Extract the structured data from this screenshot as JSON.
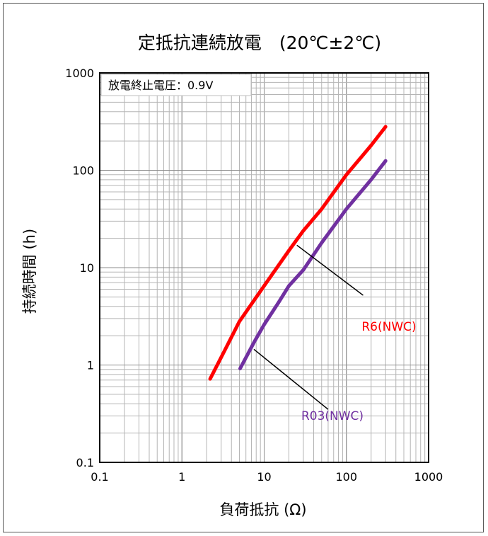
{
  "chart_data": {
    "type": "line",
    "title": "定抵抗連続放電　(20℃±2℃)",
    "xlabel": "負荷抵抗 (Ω)",
    "ylabel": "持続時間 (h)",
    "xscale": "log",
    "yscale": "log",
    "xlim": [
      0.1,
      1000
    ],
    "ylim": [
      0.1,
      1000
    ],
    "grid": true,
    "x_ticks": [
      "0.1",
      "1",
      "10",
      "100",
      "1000"
    ],
    "y_ticks": [
      "0.1",
      "1",
      "10",
      "100",
      "1000"
    ],
    "annotation": "放電終止電圧：0.9V",
    "series": [
      {
        "name": "R6(NWC)",
        "color": "#ff0000",
        "points": [
          [
            2.2,
            0.72
          ],
          [
            3.3,
            1.4
          ],
          [
            5,
            2.8
          ],
          [
            10,
            6.5
          ],
          [
            20,
            15
          ],
          [
            30,
            24
          ],
          [
            50,
            40
          ],
          [
            100,
            90
          ],
          [
            200,
            180
          ],
          [
            300,
            280
          ]
        ]
      },
      {
        "name": "R03(NWC)",
        "color": "#7030a0",
        "points": [
          [
            5.1,
            0.92
          ],
          [
            7.5,
            1.7
          ],
          [
            10,
            2.6
          ],
          [
            15,
            4.4
          ],
          [
            20,
            6.5
          ],
          [
            30,
            9.5
          ],
          [
            50,
            18
          ],
          [
            100,
            40
          ],
          [
            200,
            80
          ],
          [
            300,
            125
          ]
        ]
      }
    ]
  }
}
